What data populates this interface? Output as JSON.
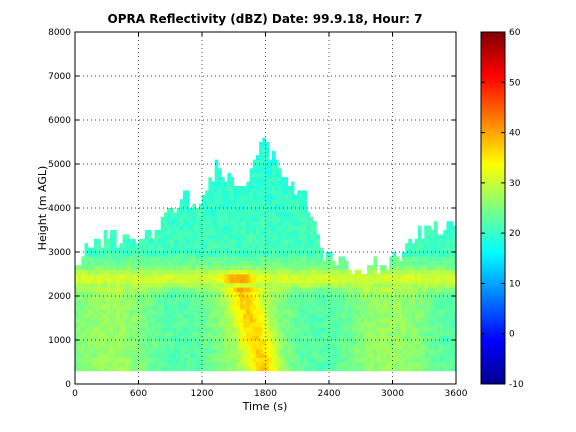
{
  "chart_data": {
    "type": "heatmap",
    "title": "OPRA Reflectivity (dBZ)  Date: 99.9.18, Hour: 7",
    "xlabel": "Time (s)",
    "ylabel": "Height (m AGL)",
    "xlim": [
      0,
      3600
    ],
    "ylim": [
      0,
      8000
    ],
    "x_ticks": [
      0,
      600,
      1200,
      1800,
      2400,
      3000,
      3600
    ],
    "x_tick_labels": [
      "0",
      "600",
      "1200",
      "1800",
      "2400",
      "3000",
      "3600"
    ],
    "y_ticks": [
      0,
      1000,
      2000,
      3000,
      4000,
      5000,
      6000,
      7000,
      8000
    ],
    "y_tick_labels": [
      "0",
      "1000",
      "2000",
      "3000",
      "4000",
      "5000",
      "6000",
      "7000",
      "8000"
    ],
    "grid": true,
    "colorbar": {
      "min": -10,
      "max": 60,
      "ticks": [
        -10,
        0,
        10,
        20,
        30,
        40,
        50,
        60
      ],
      "tick_labels": [
        "-10",
        "0",
        "10",
        "20",
        "30",
        "40",
        "50",
        "60"
      ],
      "colormap": "jet"
    },
    "echo_bottom_m": 300,
    "echo_top_profile": [
      {
        "t": 0,
        "top_m": 2750
      },
      {
        "t": 150,
        "top_m": 3000
      },
      {
        "t": 300,
        "top_m": 3300
      },
      {
        "t": 450,
        "top_m": 3250
      },
      {
        "t": 600,
        "top_m": 3150
      },
      {
        "t": 750,
        "top_m": 3300
      },
      {
        "t": 900,
        "top_m": 3850
      },
      {
        "t": 1050,
        "top_m": 4250
      },
      {
        "t": 1200,
        "top_m": 4000
      },
      {
        "t": 1350,
        "top_m": 5100
      },
      {
        "t": 1500,
        "top_m": 4400
      },
      {
        "t": 1650,
        "top_m": 4750
      },
      {
        "t": 1750,
        "top_m": 5450
      },
      {
        "t": 1850,
        "top_m": 5200
      },
      {
        "t": 1950,
        "top_m": 4950
      },
      {
        "t": 2050,
        "top_m": 4450
      },
      {
        "t": 2150,
        "top_m": 4300
      },
      {
        "t": 2250,
        "top_m": 3600
      },
      {
        "t": 2350,
        "top_m": 2950
      },
      {
        "t": 2500,
        "top_m": 2700
      },
      {
        "t": 2700,
        "top_m": 2650
      },
      {
        "t": 2900,
        "top_m": 2650
      },
      {
        "t": 3050,
        "top_m": 2900
      },
      {
        "t": 3200,
        "top_m": 3300
      },
      {
        "t": 3400,
        "top_m": 3500
      },
      {
        "t": 3600,
        "top_m": 3500
      }
    ],
    "bright_band": {
      "height_m": 2400,
      "peak_dbz": 42,
      "peak_time_s": 1550
    },
    "background_dbz": 23,
    "low_level_max_dbz": 33
  }
}
